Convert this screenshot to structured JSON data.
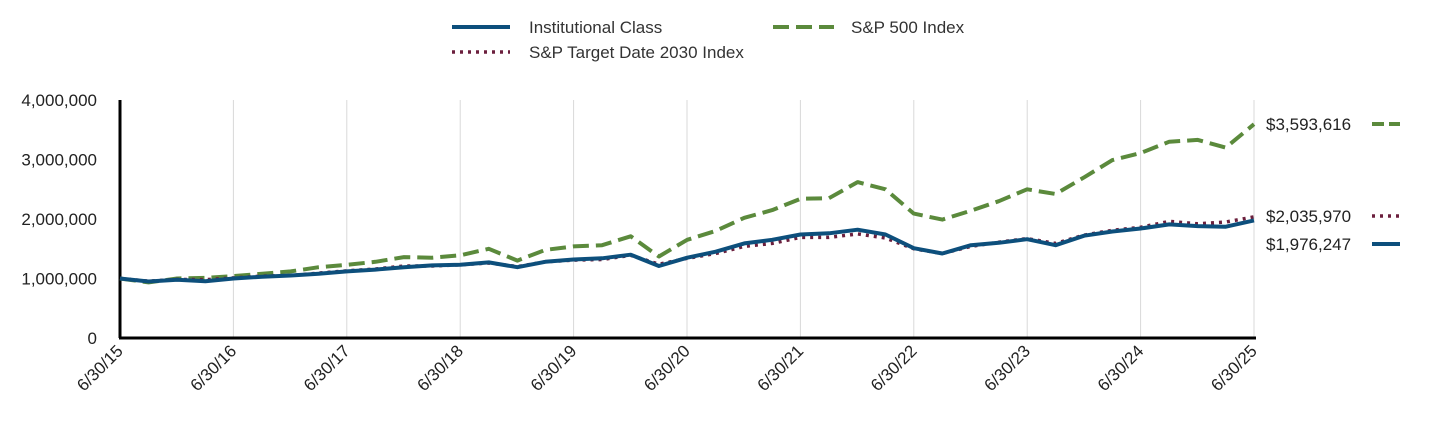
{
  "chart_data": {
    "type": "line",
    "title": "",
    "xlabel": "",
    "ylabel": "",
    "ylim": [
      0,
      4000000
    ],
    "y_ticks": [
      0,
      1000000,
      2000000,
      3000000,
      4000000
    ],
    "y_tick_labels": [
      "0",
      "1,000,000",
      "2,000,000",
      "3,000,000",
      "4,000,000"
    ],
    "x_range": [
      "2015-06-30",
      "2025-06-30"
    ],
    "x_tick_labels": [
      "6/30/15",
      "6/30/16",
      "6/30/17",
      "6/30/18",
      "6/30/19",
      "6/30/20",
      "6/30/21",
      "6/30/22",
      "6/30/23",
      "6/30/24",
      "6/30/25"
    ],
    "grid": "vertical",
    "legend_position": "top",
    "series": [
      {
        "name": "Institutional Class",
        "color": "#0d4f7c",
        "style": "solid",
        "end_label": "$1,976,247",
        "points": [
          [
            "2015-06-30",
            1000000
          ],
          [
            "2015-09-30",
            950000
          ],
          [
            "2015-12-31",
            980000
          ],
          [
            "2016-03-31",
            955000
          ],
          [
            "2016-06-30",
            1000000
          ],
          [
            "2016-09-30",
            1030000
          ],
          [
            "2016-12-31",
            1050000
          ],
          [
            "2017-03-31",
            1080000
          ],
          [
            "2017-06-30",
            1120000
          ],
          [
            "2017-09-30",
            1150000
          ],
          [
            "2017-12-31",
            1190000
          ],
          [
            "2018-03-31",
            1220000
          ],
          [
            "2018-06-30",
            1230000
          ],
          [
            "2018-09-30",
            1270000
          ],
          [
            "2018-12-31",
            1190000
          ],
          [
            "2019-03-31",
            1280000
          ],
          [
            "2019-06-30",
            1320000
          ],
          [
            "2019-09-30",
            1340000
          ],
          [
            "2019-12-31",
            1400000
          ],
          [
            "2020-03-31",
            1210000
          ],
          [
            "2020-06-30",
            1350000
          ],
          [
            "2020-09-30",
            1450000
          ],
          [
            "2020-12-31",
            1590000
          ],
          [
            "2021-03-31",
            1650000
          ],
          [
            "2021-06-30",
            1740000
          ],
          [
            "2021-09-30",
            1760000
          ],
          [
            "2021-12-31",
            1820000
          ],
          [
            "2022-03-31",
            1740000
          ],
          [
            "2022-06-30",
            1510000
          ],
          [
            "2022-09-30",
            1420000
          ],
          [
            "2022-12-31",
            1560000
          ],
          [
            "2023-03-31",
            1600000
          ],
          [
            "2023-06-30",
            1660000
          ],
          [
            "2023-09-30",
            1560000
          ],
          [
            "2023-12-31",
            1720000
          ],
          [
            "2024-03-31",
            1790000
          ],
          [
            "2024-06-30",
            1840000
          ],
          [
            "2024-09-30",
            1910000
          ],
          [
            "2024-12-31",
            1880000
          ],
          [
            "2025-03-31",
            1870000
          ],
          [
            "2025-06-30",
            1976247
          ]
        ]
      },
      {
        "name": "S&P 500 Index",
        "color": "#5b8a3c",
        "style": "dashed",
        "end_label": "$3,593,616",
        "points": [
          [
            "2015-06-30",
            1000000
          ],
          [
            "2015-09-30",
            935000
          ],
          [
            "2015-12-31",
            1000000
          ],
          [
            "2016-03-31",
            1010000
          ],
          [
            "2016-06-30",
            1040000
          ],
          [
            "2016-09-30",
            1080000
          ],
          [
            "2016-12-31",
            1120000
          ],
          [
            "2017-03-31",
            1190000
          ],
          [
            "2017-06-30",
            1230000
          ],
          [
            "2017-09-30",
            1280000
          ],
          [
            "2017-12-31",
            1360000
          ],
          [
            "2018-03-31",
            1350000
          ],
          [
            "2018-06-30",
            1390000
          ],
          [
            "2018-09-30",
            1500000
          ],
          [
            "2018-12-31",
            1300000
          ],
          [
            "2019-03-31",
            1480000
          ],
          [
            "2019-06-30",
            1540000
          ],
          [
            "2019-09-30",
            1560000
          ],
          [
            "2019-12-31",
            1710000
          ],
          [
            "2020-03-31",
            1370000
          ],
          [
            "2020-06-30",
            1650000
          ],
          [
            "2020-09-30",
            1800000
          ],
          [
            "2020-12-31",
            2020000
          ],
          [
            "2021-03-31",
            2150000
          ],
          [
            "2021-06-30",
            2340000
          ],
          [
            "2021-09-30",
            2350000
          ],
          [
            "2021-12-31",
            2620000
          ],
          [
            "2022-03-31",
            2500000
          ],
          [
            "2022-06-30",
            2090000
          ],
          [
            "2022-09-30",
            1990000
          ],
          [
            "2022-12-31",
            2140000
          ],
          [
            "2023-03-31",
            2300000
          ],
          [
            "2023-06-30",
            2500000
          ],
          [
            "2023-09-30",
            2420000
          ],
          [
            "2023-12-31",
            2700000
          ],
          [
            "2024-03-31",
            2990000
          ],
          [
            "2024-06-30",
            3110000
          ],
          [
            "2024-09-30",
            3300000
          ],
          [
            "2024-12-31",
            3330000
          ],
          [
            "2025-03-31",
            3200000
          ],
          [
            "2025-06-30",
            3593616
          ]
        ]
      },
      {
        "name": "S&P Target Date 2030 Index",
        "color": "#6b1f3d",
        "style": "dotted",
        "end_label": "$2,035,970",
        "points": [
          [
            "2015-06-30",
            1000000
          ],
          [
            "2015-09-30",
            955000
          ],
          [
            "2015-12-31",
            985000
          ],
          [
            "2016-03-31",
            980000
          ],
          [
            "2016-06-30",
            1010000
          ],
          [
            "2016-09-30",
            1040000
          ],
          [
            "2016-12-31",
            1050000
          ],
          [
            "2017-03-31",
            1090000
          ],
          [
            "2017-06-30",
            1130000
          ],
          [
            "2017-09-30",
            1160000
          ],
          [
            "2017-12-31",
            1210000
          ],
          [
            "2018-03-31",
            1210000
          ],
          [
            "2018-06-30",
            1230000
          ],
          [
            "2018-09-30",
            1260000
          ],
          [
            "2018-12-31",
            1200000
          ],
          [
            "2019-03-31",
            1280000
          ],
          [
            "2019-06-30",
            1310000
          ],
          [
            "2019-09-30",
            1320000
          ],
          [
            "2019-12-31",
            1390000
          ],
          [
            "2020-03-31",
            1240000
          ],
          [
            "2020-06-30",
            1340000
          ],
          [
            "2020-09-30",
            1420000
          ],
          [
            "2020-12-31",
            1540000
          ],
          [
            "2021-03-31",
            1590000
          ],
          [
            "2021-06-30",
            1690000
          ],
          [
            "2021-09-30",
            1690000
          ],
          [
            "2021-12-31",
            1750000
          ],
          [
            "2022-03-31",
            1680000
          ],
          [
            "2022-06-30",
            1500000
          ],
          [
            "2022-09-30",
            1420000
          ],
          [
            "2022-12-31",
            1540000
          ],
          [
            "2023-03-31",
            1610000
          ],
          [
            "2023-06-30",
            1670000
          ],
          [
            "2023-09-30",
            1590000
          ],
          [
            "2023-12-31",
            1730000
          ],
          [
            "2024-03-31",
            1810000
          ],
          [
            "2024-06-30",
            1860000
          ],
          [
            "2024-09-30",
            1960000
          ],
          [
            "2024-12-31",
            1920000
          ],
          [
            "2025-03-31",
            1950000
          ],
          [
            "2025-06-30",
            2035970
          ]
        ]
      }
    ]
  }
}
